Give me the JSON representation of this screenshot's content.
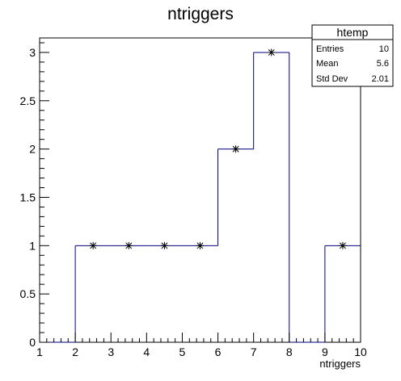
{
  "chart_data": {
    "type": "bar",
    "title": "ntriggers",
    "xlabel": "ntriggers",
    "ylabel": "",
    "xlim": [
      1,
      10
    ],
    "ylim": [
      0,
      3.15
    ],
    "bin_edges": [
      1,
      1.5,
      2,
      2.5,
      3,
      3.5,
      4,
      4.5,
      5,
      5.5,
      6,
      6.5,
      7,
      7.5,
      8,
      8.5,
      9,
      9.5,
      10
    ],
    "x": [
      1.25,
      1.75,
      2.25,
      2.75,
      3.25,
      3.75,
      4.25,
      4.75,
      5.25,
      5.75,
      6.25,
      6.75,
      7.25,
      7.75,
      8.25,
      8.75,
      9.25,
      9.75
    ],
    "values": [
      0,
      0,
      1,
      1,
      1,
      1,
      1,
      1,
      1,
      1,
      2,
      2,
      3,
      3,
      0,
      0,
      1,
      1
    ],
    "markers": [
      {
        "x": 2.5,
        "y": 1
      },
      {
        "x": 3.5,
        "y": 1
      },
      {
        "x": 4.5,
        "y": 1
      },
      {
        "x": 5.5,
        "y": 1
      },
      {
        "x": 6.5,
        "y": 2
      },
      {
        "x": 7.5,
        "y": 3
      },
      {
        "x": 9.5,
        "y": 1
      }
    ],
    "x_ticks": [
      "1",
      "2",
      "3",
      "4",
      "5",
      "6",
      "7",
      "8",
      "9",
      "10"
    ],
    "x_tick_values": [
      1,
      2,
      3,
      4,
      5,
      6,
      7,
      8,
      9,
      10
    ],
    "y_ticks": [
      "0",
      "0.5",
      "1",
      "1.5",
      "2",
      "2.5",
      "3"
    ],
    "y_tick_values": [
      0,
      0.5,
      1,
      1.5,
      2,
      2.5,
      3
    ],
    "line_color": "#000080",
    "marker_color": "#000000",
    "grid": false,
    "stats_box": {
      "placement": "top-right",
      "title": "htemp",
      "rows": [
        {
          "label": "Entries",
          "value": "10"
        },
        {
          "label": "Mean",
          "value": "5.6"
        },
        {
          "label": "Std Dev",
          "value": "2.01"
        }
      ]
    }
  }
}
